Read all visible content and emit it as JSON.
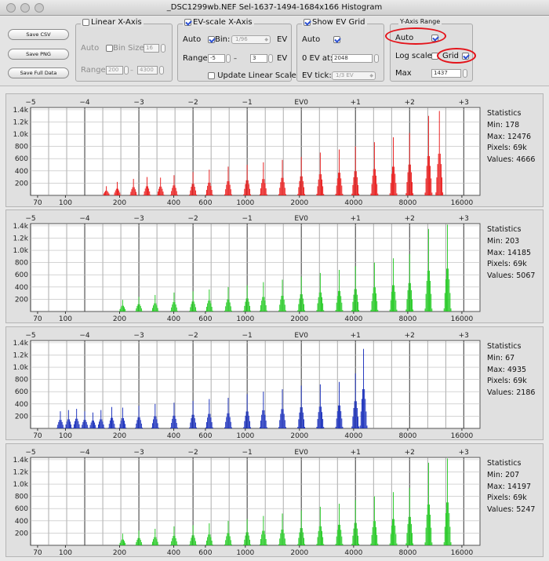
{
  "window": {
    "title": "_DSC1299wb.NEF Sel-1637-1494-1684x166 Histogram"
  },
  "buttons": {
    "save_csv": "Save CSV",
    "save_png": "Save PNG",
    "save_full": "Save Full Data"
  },
  "linear_axis": {
    "title": "Linear X-Axis",
    "auto": "Auto",
    "bin_size_label": "Bin Size:",
    "bin_size": "16",
    "range_label": "Range:",
    "range_min": "200",
    "range_sep": "–",
    "range_max": "4300"
  },
  "ev_axis": {
    "title": "EV-scale X-Axis",
    "auto": "Auto",
    "bin_label": "Bin:",
    "bin_value": "1/96",
    "ev_unit": "EV",
    "range_label": "Range",
    "range_min": "-5",
    "range_sep": "–",
    "range_max": "3",
    "update_label": "Update Linear Scale"
  },
  "ev_grid": {
    "title": "Show EV Grid",
    "auto": "Auto",
    "zero_ev_label": "0 EV at:",
    "zero_ev_value": "2048",
    "tick_label": "EV tick:",
    "tick_value": "1/3 EV"
  },
  "y_axis": {
    "title": "Y-Axis Range",
    "auto": "Auto",
    "log_label": "Log scale",
    "grid_label": "Grid",
    "max_label": "Max",
    "max_value": "1437"
  },
  "colors": {
    "red": "#e81010",
    "green": "#19c818",
    "blue": "#0c23b8",
    "annotation": "#e4141b"
  },
  "axes": {
    "ev_labels": [
      "−5",
      "−4",
      "−3",
      "−2",
      "−1",
      "EV0",
      "+1",
      "+2",
      "+3"
    ],
    "linear_labels": [
      "70",
      "100",
      "200",
      "400",
      "600",
      "1000",
      "2000",
      "4000",
      "8000",
      "16000"
    ],
    "y_labels": [
      "1.4k",
      "1.2k",
      "1.0k",
      "800",
      "600",
      "400",
      "200"
    ]
  },
  "panels": [
    {
      "stats_title": "Statistics",
      "min": "Min: 178",
      "max": "Max: 12476",
      "pixels": "Pixels: 69k",
      "values": "Values: 4666"
    },
    {
      "stats_title": "Statistics",
      "min": "Min: 203",
      "max": "Max: 14185",
      "pixels": "Pixels: 69k",
      "values": "Values: 5067"
    },
    {
      "stats_title": "Statistics",
      "min": "Min: 67",
      "max": "Max: 4935",
      "pixels": "Pixels: 69k",
      "values": "Values: 2186"
    },
    {
      "stats_title": "Statistics",
      "min": "Min: 207",
      "max": "Max: 14197",
      "pixels": "Pixels: 69k",
      "values": "Values: 5247"
    }
  ],
  "chart_data": [
    {
      "type": "bar",
      "name": "red",
      "ylim": [
        0,
        1437
      ],
      "ev_range": [
        -5,
        3
      ],
      "peaks_ev": [
        -3.6,
        -3.4,
        -3.1,
        -2.85,
        -2.6,
        -2.35,
        -2.0,
        -1.7,
        -1.35,
        -1.0,
        -0.7,
        -0.35,
        0.0,
        0.35,
        0.7,
        1.0,
        1.35,
        1.7,
        2.0,
        2.35,
        2.55
      ],
      "peaks_val": [
        150,
        220,
        270,
        300,
        290,
        330,
        380,
        420,
        470,
        500,
        540,
        580,
        630,
        700,
        750,
        800,
        870,
        950,
        1020,
        1300,
        1380
      ]
    },
    {
      "type": "bar",
      "name": "green",
      "ylim": [
        0,
        1437
      ],
      "ev_range": [
        -5,
        3
      ],
      "peaks_ev": [
        -3.3,
        -3.0,
        -2.7,
        -2.35,
        -2.0,
        -1.7,
        -1.35,
        -1.0,
        -0.7,
        -0.35,
        0.0,
        0.35,
        0.7,
        1.0,
        1.35,
        1.7,
        2.0,
        2.35,
        2.7
      ],
      "peaks_val": [
        190,
        240,
        270,
        310,
        330,
        360,
        400,
        430,
        480,
        520,
        570,
        630,
        680,
        740,
        800,
        870,
        940,
        1350,
        1420
      ]
    },
    {
      "type": "bar",
      "name": "blue",
      "ylim": [
        0,
        1437
      ],
      "ev_range": [
        -5,
        3
      ],
      "peaks_ev": [
        -4.45,
        -4.3,
        -4.15,
        -4.0,
        -3.85,
        -3.7,
        -3.5,
        -3.3,
        -3.0,
        -2.7,
        -2.35,
        -2.0,
        -1.7,
        -1.35,
        -1.0,
        -0.7,
        -0.35,
        0.0,
        0.35,
        0.7,
        1.0,
        1.15
      ],
      "peaks_val": [
        280,
        300,
        320,
        280,
        260,
        300,
        350,
        340,
        370,
        400,
        420,
        450,
        480,
        500,
        560,
        600,
        640,
        700,
        720,
        760,
        900,
        1300
      ]
    },
    {
      "type": "bar",
      "name": "green",
      "ylim": [
        0,
        1437
      ],
      "ev_range": [
        -5,
        3
      ],
      "peaks_ev": [
        -3.3,
        -3.0,
        -2.7,
        -2.35,
        -2.0,
        -1.7,
        -1.35,
        -1.0,
        -0.7,
        -0.35,
        0.0,
        0.35,
        0.7,
        1.0,
        1.35,
        1.7,
        2.0,
        2.35,
        2.7
      ],
      "peaks_val": [
        190,
        240,
        270,
        310,
        330,
        360,
        400,
        430,
        480,
        520,
        570,
        630,
        680,
        740,
        800,
        870,
        940,
        1350,
        1420
      ]
    }
  ]
}
